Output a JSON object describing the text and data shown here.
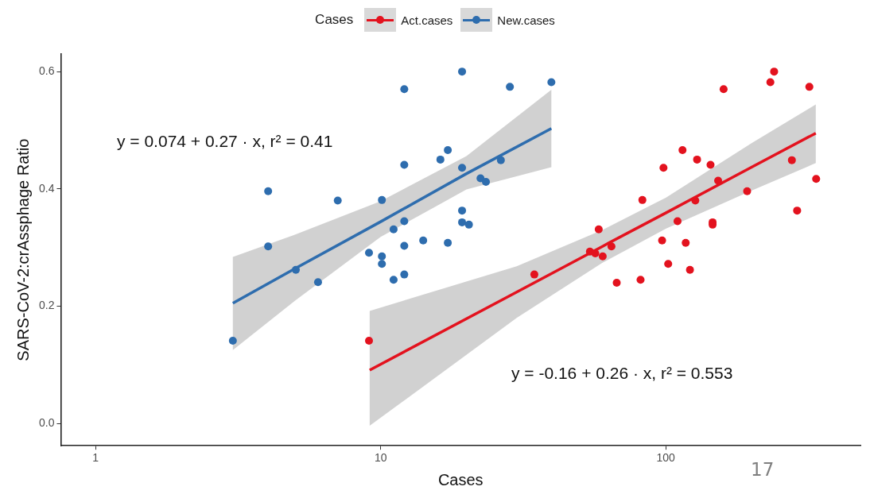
{
  "chart_data": {
    "type": "scatter",
    "xlabel": "Cases",
    "ylabel": "SARS-CoV-2:crAssphage Ratio",
    "legend_title": "Cases",
    "legend": "top",
    "log": "x",
    "grid": false,
    "marker": "circle",
    "xlim": [
      0.755,
      482
    ],
    "xticks": [
      1,
      10,
      100
    ],
    "ylim": [
      -0.038,
      0.63
    ],
    "yticks": [
      {
        "value": 0,
        "label": "0.0"
      },
      0.2,
      0.4,
      0.6
    ],
    "annotations": [
      "y = 0.074 + 0.27 · x,  r² = 0.41",
      "y = -0.16 + 0.26 · x,  r² = 0.553",
      "17"
    ],
    "series": [
      {
        "name": "Act.cases",
        "color": "#e3121e",
        "x": [
          9.1,
          34.6,
          54.2,
          56.6,
          58.2,
          60.1,
          64.5,
          67.3,
          81.6,
          82.8,
          97.1,
          98.2,
          102,
          110,
          114.5,
          117.5,
          121.6,
          127,
          128.8,
          143.6,
          146,
          146,
          152.7,
          159.6,
          193,
          232.8,
          240,
          277,
          289,
          319,
          337
        ],
        "values": [
          0.141,
          0.254,
          0.293,
          0.29,
          0.331,
          0.285,
          0.302,
          0.24,
          0.245,
          0.381,
          0.312,
          0.436,
          0.272,
          0.345,
          0.466,
          0.308,
          0.262,
          0.38,
          0.45,
          0.441,
          0.343,
          0.339,
          0.414,
          0.57,
          0.396,
          0.582,
          0.6,
          0.449,
          0.363,
          0.574,
          0.417
        ]
      },
      {
        "name": "New.cases",
        "color": "#2e6dae",
        "x": [
          3.03,
          4.03,
          4.03,
          5.04,
          6.03,
          7.07,
          9.1,
          10.1,
          10.1,
          10.1,
          11.1,
          11.1,
          12.1,
          12.1,
          12.1,
          12.1,
          12.1,
          14.1,
          16.2,
          17.2,
          17.2,
          19.3,
          19.3,
          19.3,
          19.3,
          20.4,
          22.4,
          23.4,
          26.4,
          28.4,
          39.7
        ],
        "values": [
          0.141,
          0.396,
          0.302,
          0.262,
          0.241,
          0.38,
          0.291,
          0.381,
          0.285,
          0.272,
          0.331,
          0.245,
          0.57,
          0.441,
          0.345,
          0.303,
          0.254,
          0.312,
          0.45,
          0.466,
          0.308,
          0.6,
          0.436,
          0.363,
          0.343,
          0.339,
          0.418,
          0.412,
          0.449,
          0.574,
          0.582
        ]
      },
      {
        "type": "line",
        "marker": "none",
        "color": "#e3121e",
        "x": [
          9.15,
          30,
          60,
          100,
          200,
          336
        ],
        "values": [
          0.091,
          0.224,
          0.302,
          0.359,
          0.437,
          0.495
        ],
        "lower": [
          -0.004,
          0.18,
          0.274,
          0.332,
          0.397,
          0.444
        ],
        "upper": [
          0.192,
          0.268,
          0.33,
          0.385,
          0.478,
          0.544
        ]
      },
      {
        "type": "line",
        "marker": "none",
        "color": "#2e6dae",
        "x": [
          3.03,
          5,
          10,
          20,
          39.7
        ],
        "values": [
          0.205,
          0.264,
          0.344,
          0.426,
          0.503
        ],
        "lower": [
          0.125,
          0.209,
          0.318,
          0.399,
          0.437
        ],
        "upper": [
          0.284,
          0.322,
          0.379,
          0.456,
          0.569
        ]
      }
    ]
  }
}
